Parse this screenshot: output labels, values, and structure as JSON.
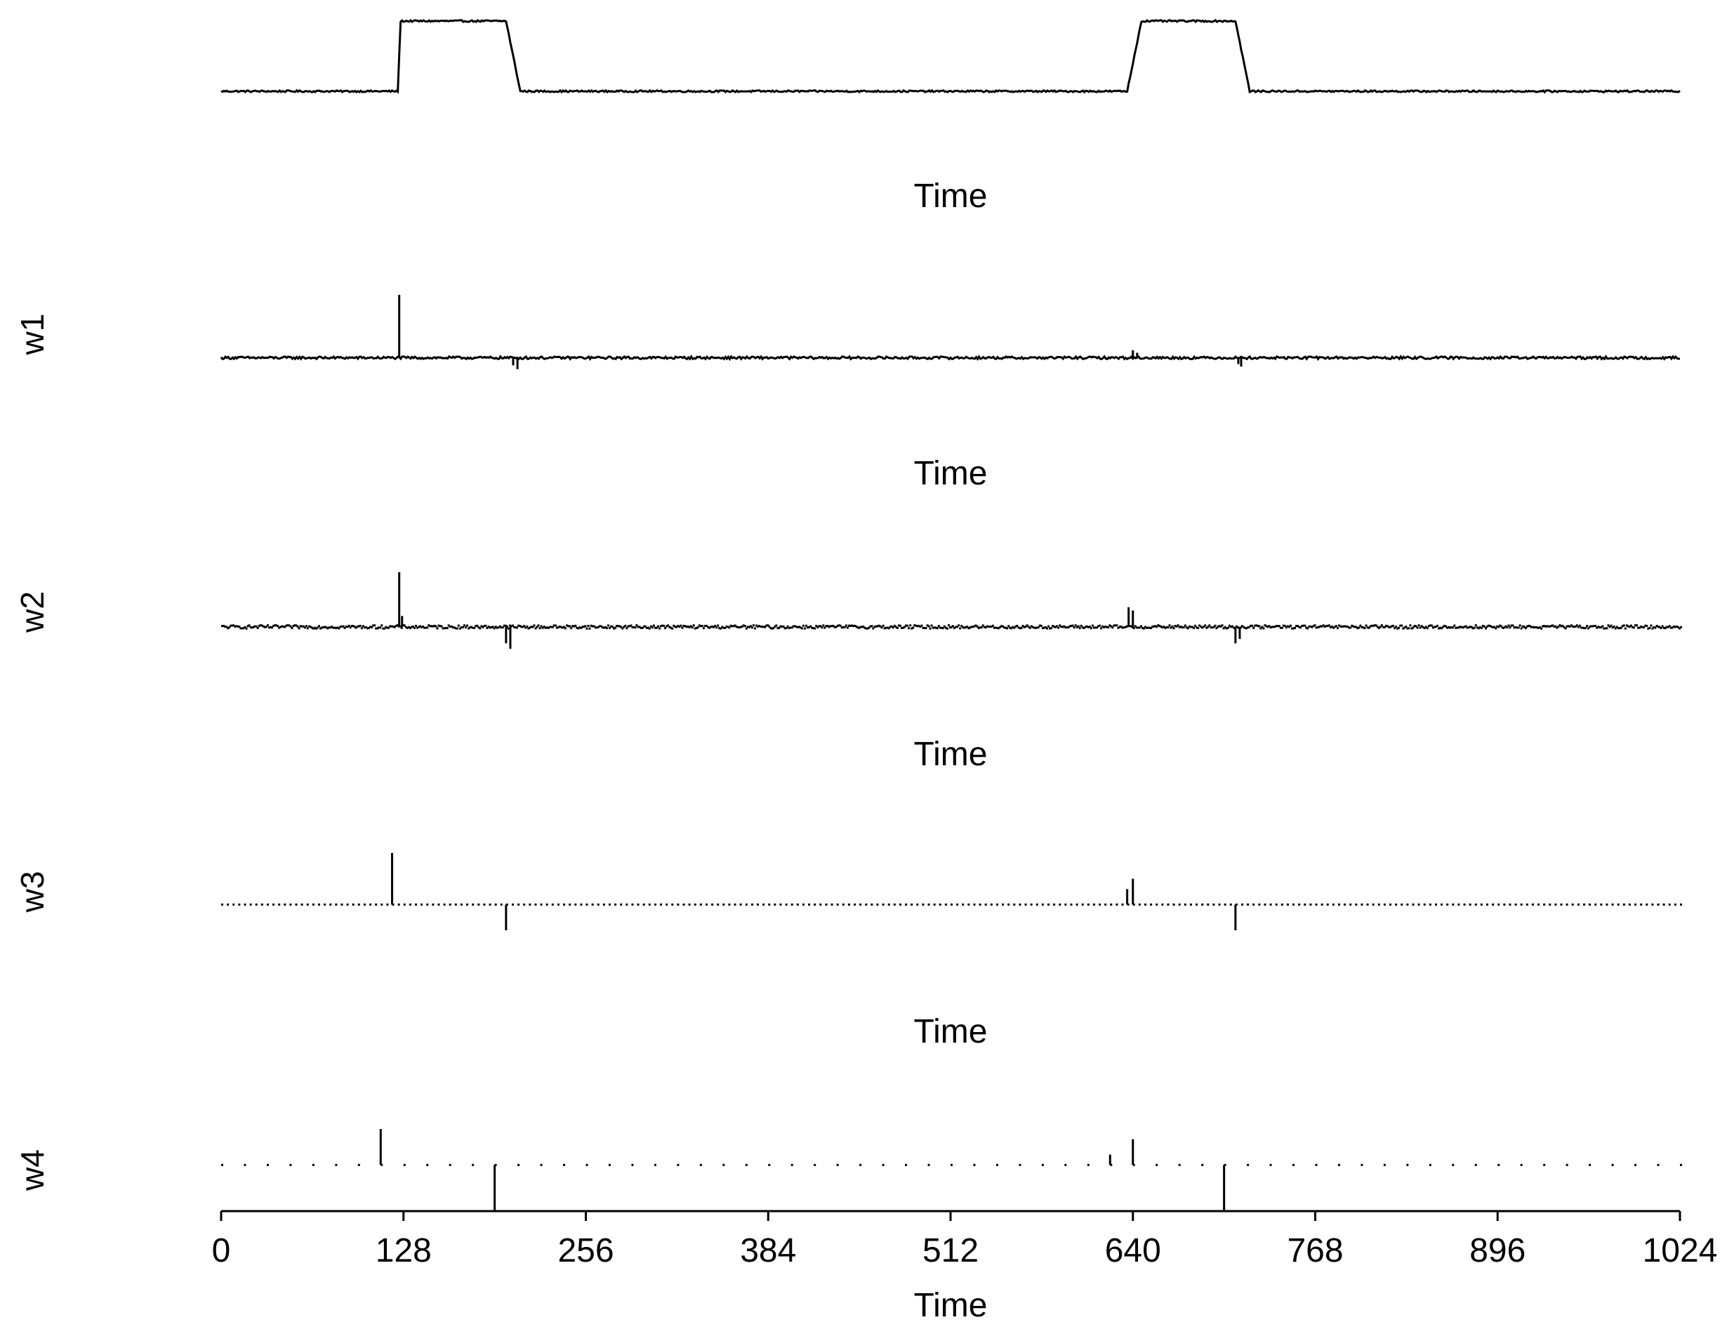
{
  "chart_data": [
    {
      "type": "line",
      "panel": "signal",
      "xlabel": "Time",
      "ylabel": "",
      "xlim": [
        0,
        1024
      ],
      "ylim": [
        0,
        1
      ],
      "style": "line",
      "noise": 0.012,
      "breakpoints": [
        [
          0,
          0
        ],
        [
          124,
          0
        ],
        [
          126,
          1
        ],
        [
          200,
          1
        ],
        [
          210,
          0
        ],
        [
          636,
          0
        ],
        [
          646,
          1
        ],
        [
          712,
          1
        ],
        [
          722,
          0
        ],
        [
          1024,
          0
        ]
      ]
    },
    {
      "type": "line",
      "panel": "w1",
      "xlabel": "Time",
      "ylabel": "w1",
      "xlim": [
        0,
        1024
      ],
      "ylim": [
        -0.25,
        1
      ],
      "style": "line",
      "noise": 0.02,
      "spikes": [
        [
          125,
          1.0
        ],
        [
          205,
          -0.12
        ],
        [
          208,
          -0.18
        ],
        [
          640,
          0.12
        ],
        [
          643,
          0.08
        ],
        [
          714,
          -0.1
        ],
        [
          716,
          -0.14
        ]
      ]
    },
    {
      "type": "line",
      "panel": "w2",
      "xlabel": "Time",
      "ylabel": "w2",
      "xlim": [
        0,
        1024
      ],
      "ylim": [
        -0.45,
        1
      ],
      "style": "dotted-line",
      "noise": 0.03,
      "spikes": [
        [
          125,
          1.0
        ],
        [
          127,
          0.2
        ],
        [
          200,
          -0.3
        ],
        [
          203,
          -0.4
        ],
        [
          637,
          0.36
        ],
        [
          640,
          0.3
        ],
        [
          712,
          -0.3
        ],
        [
          715,
          -0.22
        ]
      ]
    },
    {
      "type": "line",
      "panel": "w3",
      "xlabel": "Time",
      "ylabel": "w3",
      "xlim": [
        0,
        1024
      ],
      "ylim": [
        -0.5,
        1
      ],
      "style": "dotted",
      "spacing": 4,
      "spikes": [
        [
          120,
          1.0
        ],
        [
          200,
          -0.5
        ],
        [
          636,
          0.3
        ],
        [
          640,
          0.5
        ],
        [
          712,
          -0.5
        ]
      ]
    },
    {
      "type": "line",
      "panel": "w4",
      "xlabel": "Time",
      "ylabel": "w4",
      "xlim": [
        0,
        1024
      ],
      "ylim": [
        -0.9,
        0.7
      ],
      "style": "dotted",
      "spacing": 16,
      "spikes": [
        [
          112,
          0.7
        ],
        [
          192,
          -0.9
        ],
        [
          624,
          0.2
        ],
        [
          640,
          0.5
        ],
        [
          704,
          -0.9
        ]
      ],
      "xticks": [
        0,
        128,
        256,
        384,
        512,
        640,
        768,
        896,
        1024
      ]
    }
  ]
}
